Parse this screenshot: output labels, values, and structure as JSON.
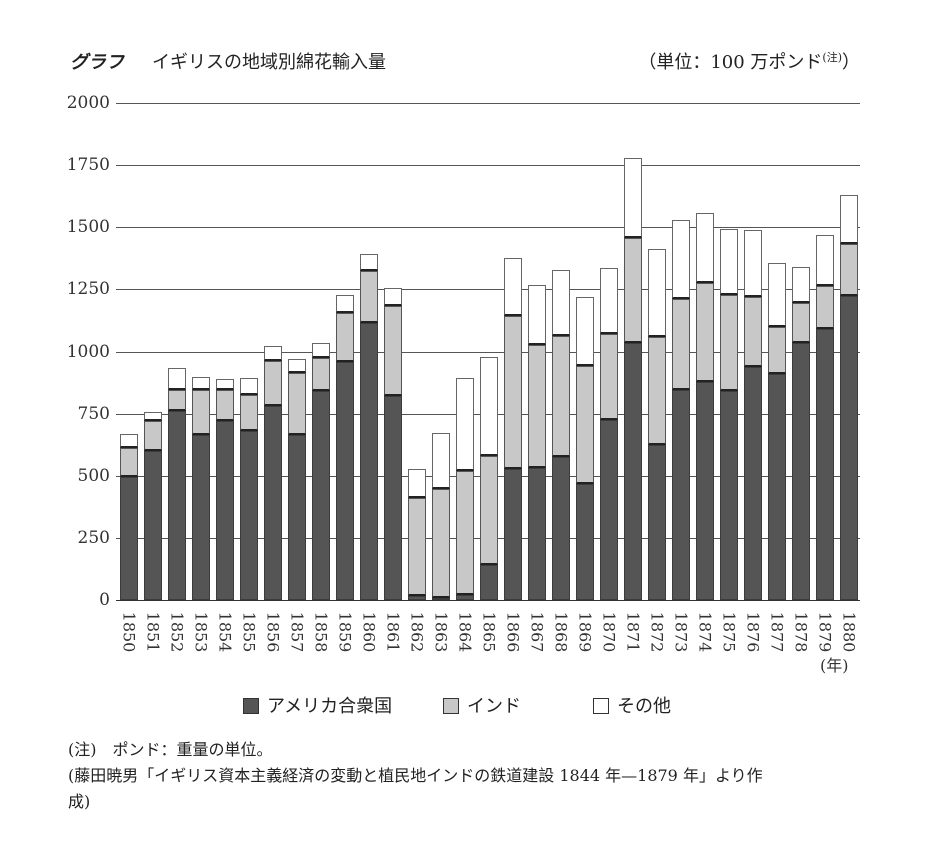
{
  "header": {
    "label": "グラフ",
    "title": "イギリスの地域別綿花輸入量",
    "unit": "（単位：100 万ポンド",
    "unit_note": "(注)",
    "unit_close": "）"
  },
  "legend": {
    "items": [
      {
        "label": "アメリカ合衆国",
        "color": "#555555"
      },
      {
        "label": "インド",
        "color": "#c8c8c8"
      },
      {
        "label": "その他",
        "color": "#ffffff"
      }
    ]
  },
  "xaxis_unit": "(年)",
  "footnotes": {
    "note": "(注)　ポンド：重量の単位。",
    "source_line1": "(藤田暁男「イギリス資本主義経済の変動と植民地インドの鉄道建設 1844 年—1879 年」より作",
    "source_line2": "成)"
  },
  "chart_data": {
    "type": "bar",
    "stacked": true,
    "title": "イギリスの地域別綿花輸入量",
    "xlabel": "(年)",
    "ylabel": "単位：100 万ポンド",
    "ylim": [
      0,
      2000
    ],
    "yticks": [
      0,
      250,
      500,
      750,
      1000,
      1250,
      1500,
      1750,
      2000
    ],
    "grid": true,
    "legend_position": "bottom",
    "categories": [
      "1850",
      "1851",
      "1852",
      "1853",
      "1854",
      "1855",
      "1856",
      "1857",
      "1858",
      "1859",
      "1860",
      "1861",
      "1862",
      "1863",
      "1864",
      "1865",
      "1866",
      "1867",
      "1868",
      "1869",
      "1870",
      "1871",
      "1872",
      "1873",
      "1874",
      "1875",
      "1876",
      "1877",
      "1878",
      "1879",
      "1880"
    ],
    "series": [
      {
        "name": "アメリカ合衆国",
        "color": "#555555",
        "values": [
          494,
          599,
          760,
          663,
          720,
          679,
          780,
          663,
          840,
          957,
          1113,
          820,
          18,
          10,
          20,
          141,
          527,
          533,
          575,
          467,
          724,
          1033,
          623,
          844,
          876,
          840,
          937,
          909,
          1033,
          1089,
          1222
        ]
      },
      {
        "name": "インド",
        "color": "#c8c8c8",
        "values": [
          117,
          121,
          87,
          181,
          124,
          145,
          181,
          249,
          133,
          197,
          210,
          362,
          392,
          436,
          499,
          438,
          614,
          493,
          487,
          474,
          348,
          422,
          434,
          366,
          398,
          386,
          281,
          188,
          161,
          173,
          209
        ]
      },
      {
        "name": "その他",
        "color": "#ffffff",
        "values": [
          56,
          36,
          85,
          53,
          44,
          68,
          60,
          57,
          60,
          72,
          68,
          72,
          117,
          225,
          373,
          398,
          237,
          241,
          265,
          278,
          266,
          322,
          354,
          318,
          282,
          265,
          269,
          258,
          145,
          205,
          197
        ]
      }
    ]
  }
}
